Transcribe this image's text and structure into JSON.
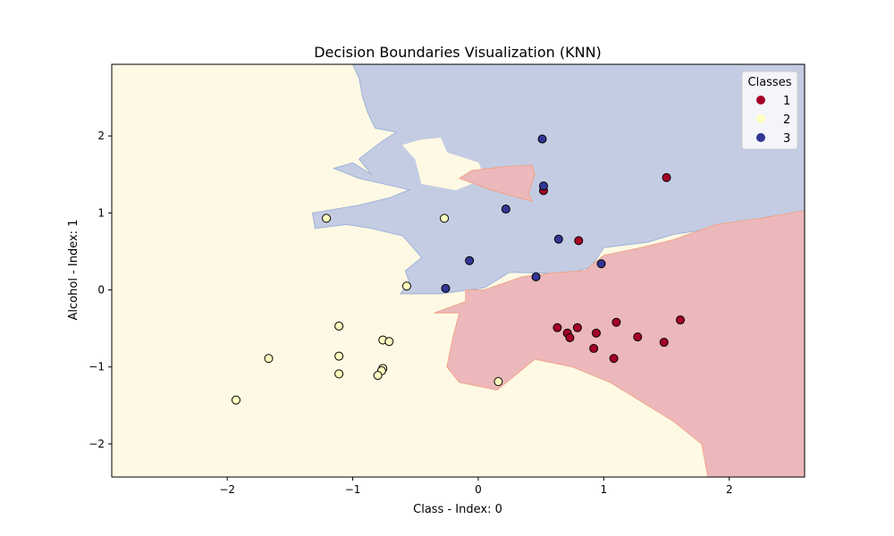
{
  "chart_data": {
    "type": "scatter",
    "title": "Decision Boundaries Visualization (KNN)",
    "xlabel": "Class - Index: 0",
    "ylabel": "Alcohol - Index: 1",
    "xlim": [
      -2.92,
      2.6
    ],
    "ylim": [
      -2.43,
      2.93
    ],
    "xticks": [
      -2,
      -1,
      0,
      1,
      2
    ],
    "yticks": [
      -2,
      -1,
      0,
      1,
      2
    ],
    "tick_labels_x": [
      "−2",
      "−1",
      "0",
      "1",
      "2"
    ],
    "tick_labels_y": [
      "−2",
      "−1",
      "0",
      "1",
      "2"
    ],
    "grid": false,
    "legend": {
      "title": "Classes",
      "placement": "top-right",
      "entries": [
        "1",
        "2",
        "3"
      ]
    },
    "colors": {
      "class_1_point": "#a50026",
      "class_2_point": "#ffffbf",
      "class_3_point": "#313695",
      "region_1": "#ecb8bb",
      "region_2": "#fdf9e4",
      "region_3": "#c4cce3",
      "region_1_edge": "#f0a58a",
      "region_3_edge": "#9fb2d8"
    },
    "regions": [
      {
        "class": "3",
        "polygon": [
          [
            -1.0,
            2.93
          ],
          [
            2.6,
            2.93
          ],
          [
            2.6,
            1.0
          ],
          [
            2.3,
            0.95
          ],
          [
            1.95,
            0.82
          ],
          [
            1.55,
            0.72
          ],
          [
            1.35,
            0.62
          ],
          [
            1.0,
            0.55
          ],
          [
            0.9,
            0.3
          ],
          [
            0.7,
            0.2
          ],
          [
            0.5,
            0.22
          ],
          [
            0.25,
            0.23
          ],
          [
            0.05,
            0.03
          ],
          [
            -0.3,
            -0.05
          ],
          [
            -0.62,
            -0.05
          ],
          [
            -0.55,
            0.1
          ],
          [
            -0.58,
            0.25
          ],
          [
            -0.45,
            0.42
          ],
          [
            -0.6,
            0.7
          ],
          [
            -0.85,
            0.8
          ],
          [
            -1.05,
            0.85
          ],
          [
            -1.3,
            0.8
          ],
          [
            -1.32,
            1.0
          ],
          [
            -0.95,
            1.1
          ],
          [
            -0.7,
            1.2
          ],
          [
            -0.55,
            1.3
          ],
          [
            -0.68,
            1.35
          ],
          [
            -0.95,
            1.45
          ],
          [
            -1.15,
            1.58
          ],
          [
            -1.0,
            1.65
          ],
          [
            -0.85,
            1.5
          ],
          [
            -0.95,
            1.7
          ],
          [
            -0.75,
            1.95
          ],
          [
            -0.65,
            2.05
          ],
          [
            -0.82,
            2.1
          ],
          [
            -0.88,
            2.3
          ],
          [
            -0.92,
            2.5
          ],
          [
            -0.95,
            2.75
          ]
        ]
      },
      {
        "class": "2",
        "polygon": [
          [
            -0.45,
            1.95
          ],
          [
            -0.3,
            1.97
          ],
          [
            -0.25,
            1.78
          ],
          [
            0.0,
            1.65
          ],
          [
            0.05,
            1.45
          ],
          [
            -0.18,
            1.3
          ],
          [
            -0.45,
            1.38
          ],
          [
            -0.5,
            1.7
          ],
          [
            -0.6,
            1.88
          ]
        ]
      },
      {
        "class": "1",
        "polygon": [
          [
            0.2,
            1.6
          ],
          [
            0.43,
            1.62
          ],
          [
            0.45,
            1.5
          ],
          [
            0.4,
            1.25
          ],
          [
            0.43,
            1.15
          ],
          [
            0.32,
            1.2
          ],
          [
            0.1,
            1.3
          ],
          [
            -0.15,
            1.45
          ],
          [
            -0.05,
            1.55
          ]
        ]
      },
      {
        "class": "1",
        "polygon": [
          [
            0.05,
            0.0
          ],
          [
            0.35,
            0.17
          ],
          [
            0.6,
            0.22
          ],
          [
            0.85,
            0.25
          ],
          [
            1.0,
            0.45
          ],
          [
            1.3,
            0.55
          ],
          [
            1.55,
            0.65
          ],
          [
            1.9,
            0.85
          ],
          [
            2.25,
            0.93
          ],
          [
            2.6,
            1.03
          ],
          [
            2.6,
            -2.43
          ],
          [
            1.83,
            -2.43
          ],
          [
            1.78,
            -2.0
          ],
          [
            1.55,
            -1.7
          ],
          [
            1.35,
            -1.5
          ],
          [
            1.05,
            -1.2
          ],
          [
            0.75,
            -1.0
          ],
          [
            0.6,
            -0.95
          ],
          [
            0.45,
            -0.9
          ],
          [
            0.3,
            -1.1
          ],
          [
            0.15,
            -1.3
          ],
          [
            -0.15,
            -1.2
          ],
          [
            -0.25,
            -1.0
          ],
          [
            -0.2,
            -0.6
          ],
          [
            -0.15,
            -0.3
          ],
          [
            -0.35,
            -0.3
          ],
          [
            -0.1,
            -0.15
          ],
          [
            -0.1,
            0.0
          ]
        ]
      }
    ],
    "series": [
      {
        "name": "1",
        "x": [
          0.52,
          1.5,
          0.8,
          0.63,
          0.71,
          0.73,
          0.79,
          0.94,
          1.1,
          1.27,
          1.48,
          1.61,
          0.92,
          1.08
        ],
        "y": [
          1.29,
          1.46,
          0.64,
          -0.49,
          -0.56,
          -0.62,
          -0.49,
          -0.56,
          -0.42,
          -0.61,
          -0.68,
          -0.39,
          -0.76,
          -0.89
        ]
      },
      {
        "name": "2",
        "x": [
          -1.21,
          -0.27,
          -0.57,
          -1.11,
          -0.76,
          -0.71,
          -1.11,
          -0.76,
          -0.77,
          -1.11,
          -0.8,
          -1.67,
          -1.93,
          0.16
        ],
        "y": [
          0.93,
          0.93,
          0.05,
          -0.47,
          -0.65,
          -0.67,
          -0.86,
          -1.02,
          -1.05,
          -1.09,
          -1.11,
          -0.89,
          -1.43,
          -1.19
        ]
      },
      {
        "name": "3",
        "x": [
          0.51,
          0.52,
          0.22,
          0.64,
          -0.07,
          0.98,
          0.46,
          -0.26
        ],
        "y": [
          1.96,
          1.35,
          1.05,
          0.66,
          0.38,
          0.34,
          0.17,
          0.02
        ]
      }
    ]
  }
}
